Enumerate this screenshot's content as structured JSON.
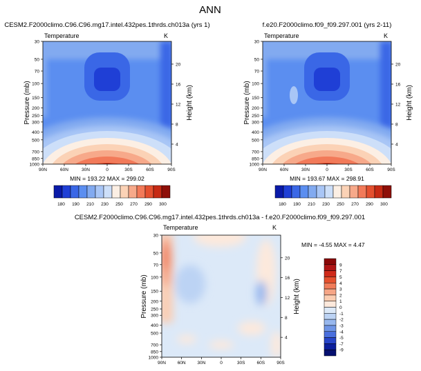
{
  "figure": {
    "title": "ANN"
  },
  "chart_data": [
    {
      "type": "heatmap",
      "id": "panel-1",
      "title": "CESM2.F2000climo.C96.C96.mg17.intel.432pes.1thrds.ch013a (yrs 1)",
      "variable": "Temperature",
      "units": "K",
      "ylabel": "Pressure (mb)",
      "y2label": "Height (km)",
      "x_ticks": [
        "90N",
        "60N",
        "30N",
        "0",
        "30S",
        "60S",
        "90S"
      ],
      "y_ticks": [
        "30",
        "50",
        "70",
        "100",
        "150",
        "200",
        "250",
        "300",
        "400",
        "500",
        "700",
        "850",
        "1000"
      ],
      "y2_ticks": [
        "20",
        "16",
        "12",
        "8",
        "4"
      ],
      "ylim": [
        30,
        1000
      ],
      "y_scale": "log",
      "stats": "MIN = 193.22   MAX = 299.02",
      "min": 193.22,
      "max": 299.02,
      "colorbar": {
        "orientation": "horizontal",
        "labels": [
          "180",
          "190",
          "210",
          "230",
          "250",
          "270",
          "290",
          "300"
        ]
      }
    },
    {
      "type": "heatmap",
      "id": "panel-2",
      "title": "f.e20.F2000climo.f09_f09.297.001 (yrs 2-11)",
      "variable": "Temperature",
      "units": "K",
      "ylabel": "Pressure (mb)",
      "y2label": "Height (km)",
      "x_ticks": [
        "90N",
        "60N",
        "30N",
        "0",
        "30S",
        "60S",
        "90S"
      ],
      "y_ticks": [
        "30",
        "50",
        "70",
        "100",
        "150",
        "200",
        "250",
        "300",
        "400",
        "500",
        "700",
        "850",
        "1000"
      ],
      "y2_ticks": [
        "20",
        "16",
        "12",
        "8",
        "4"
      ],
      "ylim": [
        30,
        1000
      ],
      "y_scale": "log",
      "stats": "MIN = 193.67   MAX = 298.91",
      "min": 193.67,
      "max": 298.91,
      "colorbar": {
        "orientation": "horizontal",
        "labels": [
          "180",
          "190",
          "210",
          "230",
          "250",
          "270",
          "290",
          "300"
        ]
      }
    },
    {
      "type": "heatmap",
      "id": "panel-diff",
      "title": "CESM2.F2000climo.C96.C96.mg17.intel.432pes.1thrds.ch013a - f.e20.F2000climo.f09_f09.297.001",
      "variable": "Temperature",
      "units": "K",
      "ylabel": "Pressure (mb)",
      "y2label": "Height (km)",
      "x_ticks": [
        "90N",
        "60N",
        "30N",
        "0",
        "30S",
        "60S",
        "90S"
      ],
      "y_ticks": [
        "30",
        "50",
        "70",
        "100",
        "150",
        "200",
        "250",
        "300",
        "400",
        "500",
        "700",
        "850",
        "1000"
      ],
      "y2_ticks": [
        "20",
        "16",
        "12",
        "8",
        "4"
      ],
      "ylim": [
        30,
        1000
      ],
      "y_scale": "log",
      "stats": "MIN = -4.55  MAX =  4.47",
      "min": -4.55,
      "max": 4.47,
      "colorbar": {
        "orientation": "vertical",
        "labels": [
          "9",
          "7",
          "5",
          "4",
          "3",
          "2",
          "1",
          "0",
          "-1",
          "-2",
          "-3",
          "-4",
          "-5",
          "-7",
          "-9"
        ]
      }
    }
  ],
  "palettes": {
    "temperature": [
      "#0a1aa8",
      "#1f3fd6",
      "#3a67e6",
      "#5b8ef0",
      "#82aaf0",
      "#a9c6f6",
      "#cddff9",
      "#fcefe4",
      "#fbd2b6",
      "#f7a98a",
      "#f27a59",
      "#e4502f",
      "#c62a14",
      "#8e0f08"
    ],
    "difference": [
      "#8a0808",
      "#b01515",
      "#d02a1a",
      "#e5502e",
      "#f07c5a",
      "#f6a687",
      "#fbcdb2",
      "#fde9dc",
      "#dce9f8",
      "#bcd3f4",
      "#98b8ee",
      "#6f95e6",
      "#4a6fdd",
      "#2745c8",
      "#0c1f9c",
      "#061070"
    ]
  }
}
